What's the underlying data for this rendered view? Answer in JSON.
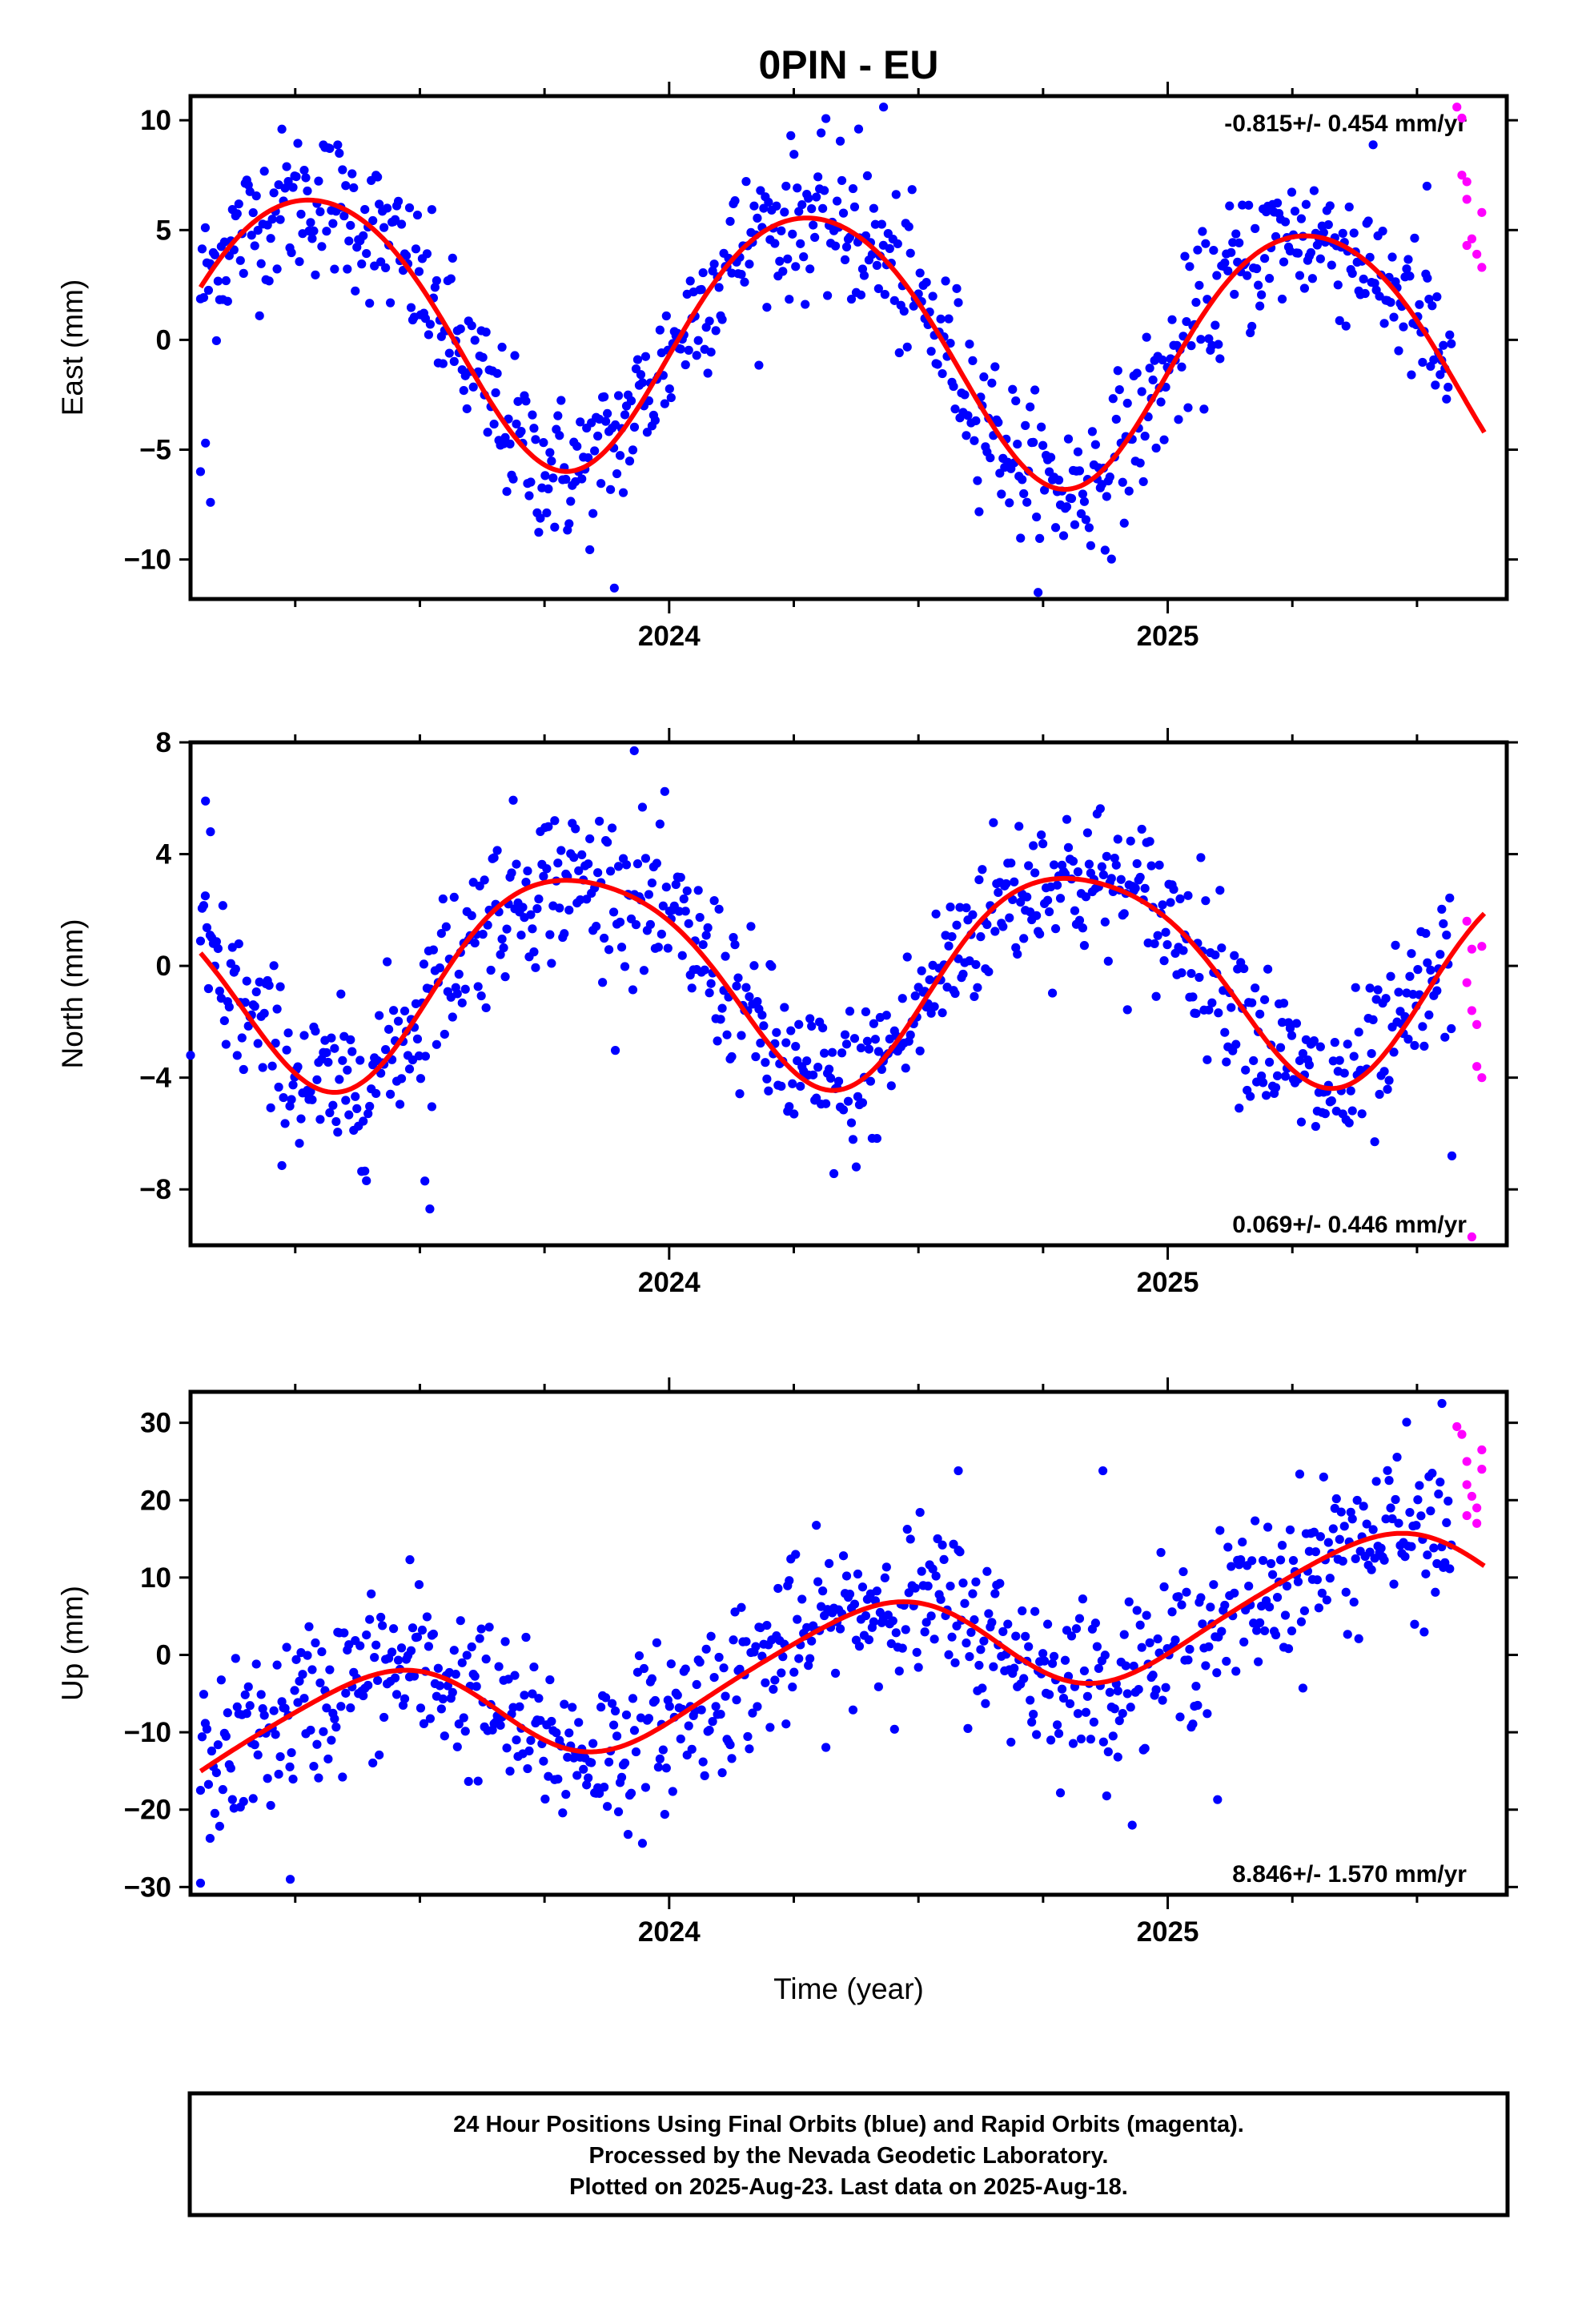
{
  "page": {
    "title": "0PIN - EU",
    "xlabel": "Time (year)",
    "footer": [
      "24 Hour Positions Using Final Orbits (blue) and Rapid Orbits (magenta).",
      "Processed by the Nevada Geodetic Laboratory.",
      "Plotted on 2025-Aug-23. Last data on 2025-Aug-18."
    ]
  },
  "colors": {
    "final_orbit": "#0000ff",
    "rapid_orbit": "#ff00ff",
    "fit": "#ff0000",
    "frame": "#000000"
  },
  "chart_data": [
    {
      "type": "scatter",
      "ylabel": "East (mm)",
      "xlim": [
        2023.04,
        2025.68
      ],
      "ylim": [
        -11.8,
        11.1
      ],
      "yticks": [
        10,
        5,
        0,
        -5,
        -10
      ],
      "ytick_labels": [
        "10",
        "5",
        "0",
        "−5",
        "−10"
      ],
      "xticks": [
        2024,
        2025
      ],
      "xtick_labels": [
        "2024",
        "2025"
      ],
      "rate": "-0.815+/- 0.454 mm/yr",
      "rate_position": "top-right",
      "model": {
        "year0": 2024.0,
        "offset": 0.3,
        "trend": -0.815,
        "ann_sin": 5.8,
        "ann_cos": -1.4,
        "semi_sin": 0.3,
        "semi_cos": 0.4
      },
      "scatter": 3.1,
      "outliers": [
        [
          2023.06,
          -6.0
        ],
        [
          2023.08,
          -7.4
        ],
        [
          2023.07,
          -4.7
        ],
        [
          2023.89,
          -11.3
        ],
        [
          2024.43,
          10.6
        ],
        [
          2024.38,
          9.6
        ],
        [
          2025.52,
          7.0
        ]
      ],
      "rapid": [
        [
          2025.58,
          10.6
        ],
        [
          2025.59,
          10.1
        ],
        [
          2025.59,
          7.5
        ],
        [
          2025.6,
          7.2
        ],
        [
          2025.6,
          6.4
        ],
        [
          2025.61,
          4.6
        ],
        [
          2025.62,
          3.9
        ],
        [
          2025.63,
          5.8
        ],
        [
          2025.63,
          3.3
        ],
        [
          2025.6,
          4.3
        ]
      ]
    },
    {
      "type": "scatter",
      "ylabel": "North (mm)",
      "xlim": [
        2023.04,
        2025.68
      ],
      "ylim": [
        -10.0,
        8.0
      ],
      "yticks": [
        8,
        4,
        0,
        -4,
        -8
      ],
      "ytick_labels": [
        "8",
        "4",
        "0",
        "−4",
        "−8"
      ],
      "xticks": [
        2024,
        2025
      ],
      "xtick_labels": [
        "2024",
        "2025"
      ],
      "rate": "0.069+/- 0.446 mm/yr",
      "rate_position": "bottom-right",
      "model": {
        "year0": 2024.0,
        "offset": -0.2,
        "trend": 0.069,
        "ann_sin": -3.4,
        "ann_cos": 1.6,
        "semi_sin": 0.5,
        "semi_cos": 0.2
      },
      "scatter": 2.6,
      "outliers": [
        [
          2023.07,
          5.9
        ],
        [
          2023.08,
          4.8
        ],
        [
          2023.04,
          -3.2
        ],
        [
          2023.51,
          -7.7
        ],
        [
          2023.52,
          -8.7
        ],
        [
          2023.93,
          7.7
        ],
        [
          2025.57,
          -6.8
        ]
      ],
      "rapid": [
        [
          2025.6,
          1.6
        ],
        [
          2025.61,
          0.6
        ],
        [
          2025.6,
          -0.6
        ],
        [
          2025.61,
          -1.6
        ],
        [
          2025.62,
          -2.1
        ],
        [
          2025.63,
          0.7
        ],
        [
          2025.62,
          -3.6
        ],
        [
          2025.63,
          -4.0
        ],
        [
          2025.61,
          -9.7
        ]
      ]
    },
    {
      "type": "scatter",
      "ylabel": "Up (mm)",
      "xlim": [
        2023.04,
        2025.68
      ],
      "ylim": [
        -31.0,
        34.0
      ],
      "yticks": [
        30,
        20,
        10,
        0,
        -10,
        -20,
        -30
      ],
      "ytick_labels": [
        "30",
        "20",
        "10",
        "0",
        "−10",
        "−20",
        "−30"
      ],
      "xticks": [
        2024,
        2025
      ],
      "xtick_labels": [
        "2024",
        "2025"
      ],
      "rate": "8.846+/- 1.570 mm/yr",
      "rate_position": "bottom-right",
      "model": {
        "year0": 2024.0,
        "offset": -4.0,
        "trend": 8.846,
        "ann_sin": 4.0,
        "ann_cos": -5.5,
        "semi_sin": 0.5,
        "semi_cos": 0.8
      },
      "scatter": 9.5,
      "outliers": [
        [
          2023.06,
          -29.5
        ],
        [
          2023.24,
          -29.0
        ],
        [
          2023.48,
          12.3
        ],
        [
          2024.58,
          23.8
        ],
        [
          2024.87,
          23.8
        ],
        [
          2024.9,
          -13.2
        ],
        [
          2025.55,
          32.5
        ],
        [
          2025.1,
          -18.7
        ]
      ],
      "rapid": [
        [
          2025.58,
          29.5
        ],
        [
          2025.59,
          28.5
        ],
        [
          2025.6,
          25.0
        ],
        [
          2025.6,
          22.0
        ],
        [
          2025.61,
          20.5
        ],
        [
          2025.62,
          19.0
        ],
        [
          2025.62,
          17.0
        ],
        [
          2025.63,
          26.5
        ],
        [
          2025.63,
          24.0
        ],
        [
          2025.6,
          18.0
        ]
      ]
    }
  ]
}
